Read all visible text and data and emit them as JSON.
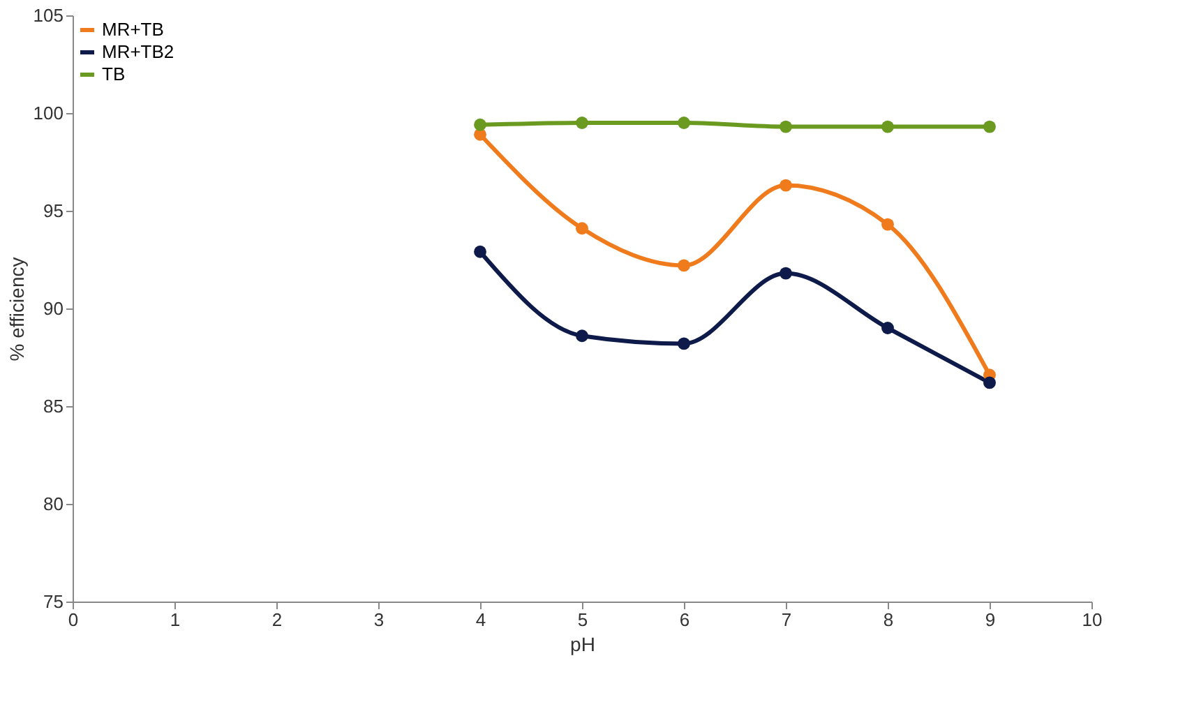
{
  "chart_data": {
    "type": "line",
    "xlabel": "pH",
    "ylabel": "% efficiency",
    "x": [
      4,
      5,
      6,
      7,
      8,
      9
    ],
    "series": [
      {
        "name": "MR+TB",
        "color": "#f07b1c",
        "values": [
          98.9,
          94.1,
          92.2,
          96.3,
          94.3,
          86.6
        ]
      },
      {
        "name": "MR+TB2",
        "color": "#0d1a4a",
        "values": [
          92.9,
          88.6,
          88.2,
          91.8,
          89.0,
          86.2
        ]
      },
      {
        "name": "TB",
        "color": "#6a9a1f",
        "values": [
          99.4,
          99.5,
          99.5,
          99.3,
          99.3,
          99.3
        ]
      }
    ],
    "xlim": [
      0,
      10
    ],
    "xticks": [
      0,
      1,
      2,
      3,
      4,
      5,
      6,
      7,
      8,
      9,
      10
    ],
    "ylim": [
      75,
      105
    ],
    "yticks": [
      75,
      80,
      85,
      90,
      95,
      100,
      105
    ],
    "grid": false,
    "legend": "top left",
    "marker": "circle",
    "line_style": "solid"
  }
}
